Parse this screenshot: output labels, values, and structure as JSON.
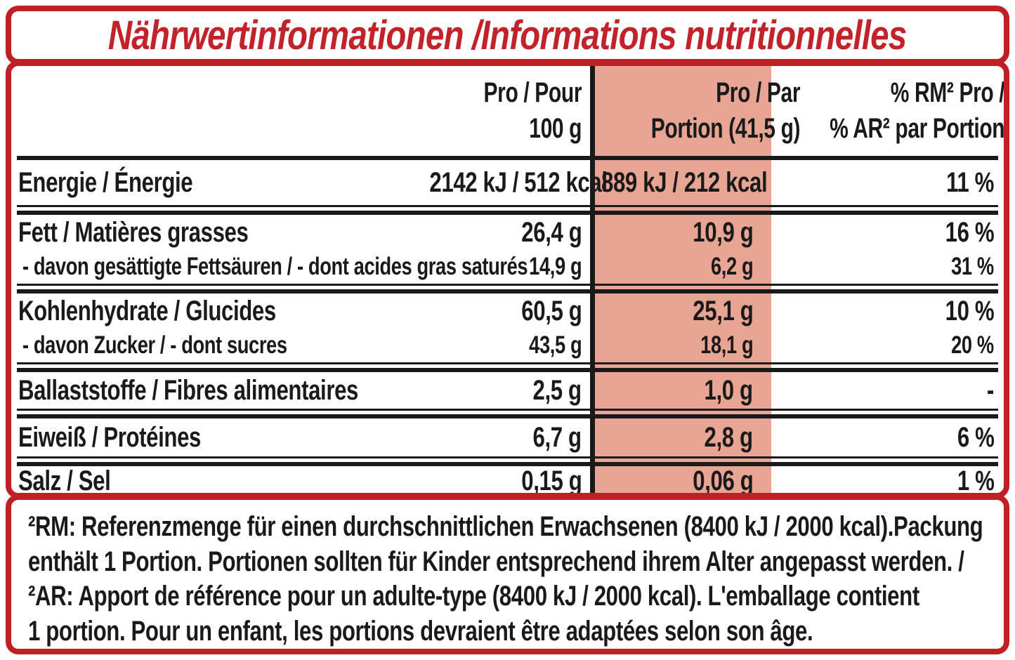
{
  "colors": {
    "accent_red": "#BE2026",
    "title_red": "#C2232B",
    "highlight_pink": "#E9A593",
    "text_black": "#1A1A1A"
  },
  "title": "Nährwertinformationen /Informations nutritionnelles",
  "table": {
    "header": {
      "per_100g": [
        "Pro / Pour",
        "100 g"
      ],
      "per_portion": [
        "Pro / Par",
        "Portion (41,5 g)"
      ],
      "pct_rm": [
        "% RM² Pro /",
        "% AR² par Portion"
      ]
    },
    "rows": [
      {
        "label": "Energie / Énergie",
        "per_100g": "2142 kJ / 512 kcal",
        "per_portion": "889 kJ / 212 kcal",
        "pct_rm": "11 %"
      },
      {
        "label": "Fett / Matières grasses",
        "per_100g": "26,4 g",
        "per_portion": "10,9 g",
        "pct_rm": "16 %"
      },
      {
        "label": "- davon gesättigte Fettsäuren / - dont acides gras saturés",
        "per_100g": "14,9 g",
        "per_portion": "6,2 g",
        "pct_rm": "31 %"
      },
      {
        "label": "Kohlenhydrate / Glucides",
        "per_100g": "60,5 g",
        "per_portion": "25,1 g",
        "pct_rm": "10 %"
      },
      {
        "label": "- davon Zucker / - dont sucres",
        "per_100g": "43,5 g",
        "per_portion": "18,1 g",
        "pct_rm": "20 %"
      },
      {
        "label": "Ballaststoffe / Fibres alimentaires",
        "per_100g": "2,5 g",
        "per_portion": "1,0 g",
        "pct_rm": "-"
      },
      {
        "label": "Eiweiß / Protéines",
        "per_100g": "6,7 g",
        "per_portion": "2,8 g",
        "pct_rm": "6 %"
      },
      {
        "label": "Salz / Sel",
        "per_100g": "0,15 g",
        "per_portion": "0,06 g",
        "pct_rm": "1 %"
      }
    ]
  },
  "footnote": {
    "lines": [
      "²RM: Referenzmenge für einen durchschnittlichen Erwachsenen (8400 kJ / 2000 kcal).Packung",
      "enthält 1 Portion. Portionen sollten für Kinder entsprechend ihrem Alter angepasst werden. /",
      "²AR: Apport de référence pour un adulte-type (8400 kJ / 2000 kcal). L'emballage contient",
      "1 portion. Pour un enfant, les portions devraient être adaptées selon son âge."
    ]
  }
}
